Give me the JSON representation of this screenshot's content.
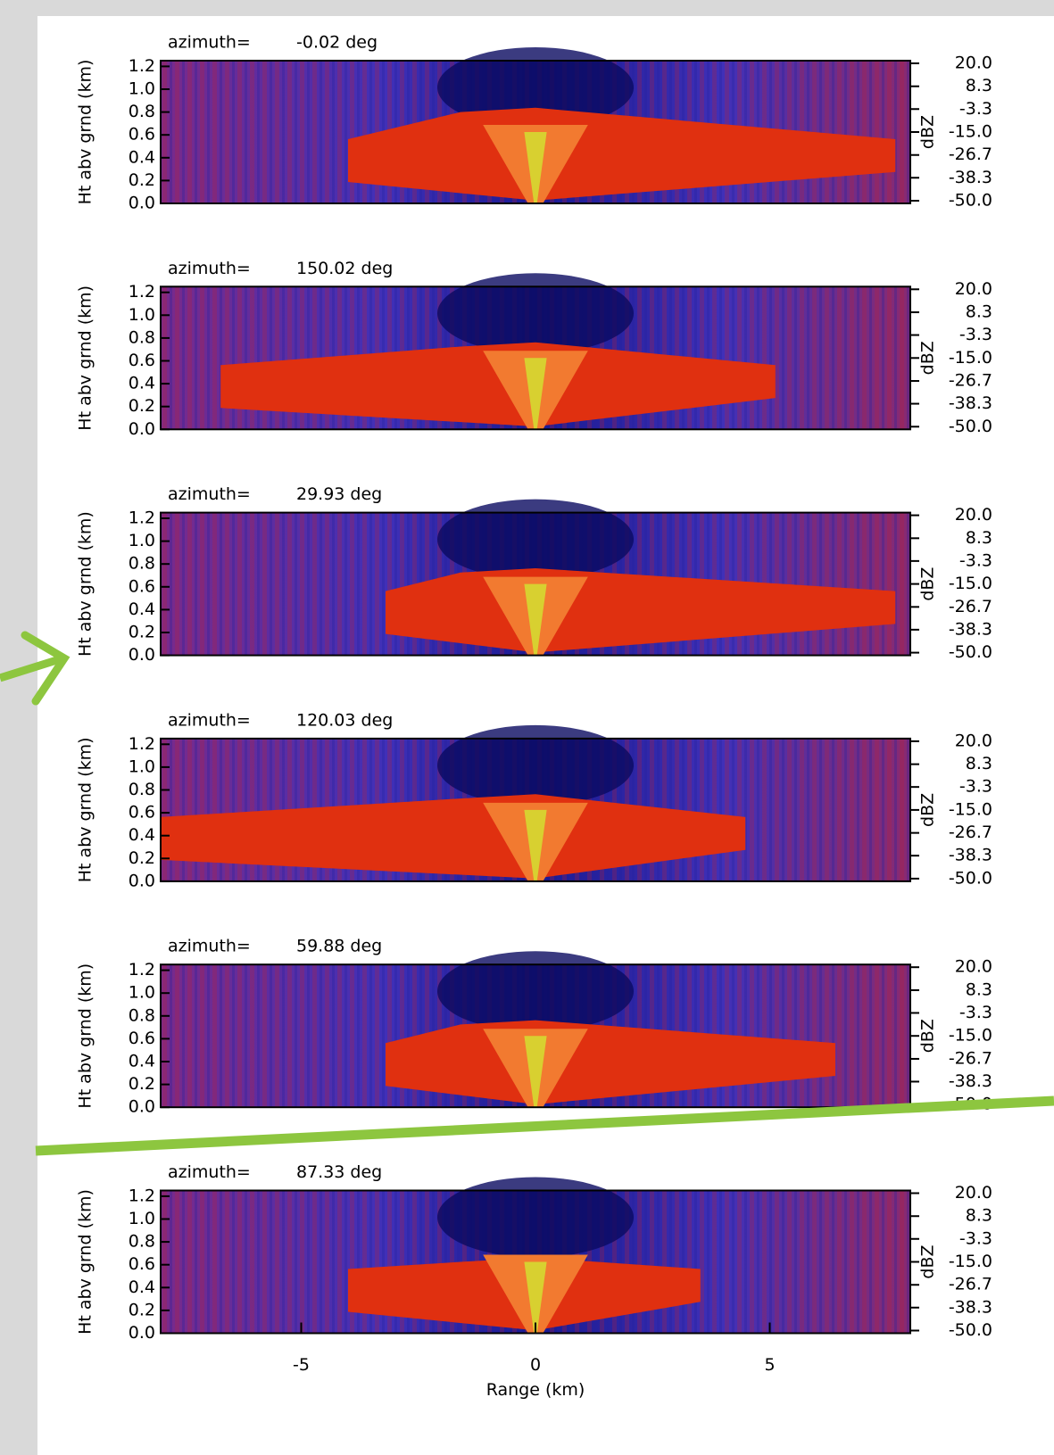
{
  "chart_data": [
    {
      "type": "rhi",
      "title": "azimuth=",
      "azimuth": "-0.02 deg",
      "ylabel": "Ht abv grnd (km)",
      "xlim": [
        -8,
        8
      ],
      "ylim": [
        0,
        1.25
      ],
      "yticks": [
        {
          "value": 0,
          "label": "0.0"
        },
        0.2,
        0.4,
        0.6,
        0.8,
        {
          "value": 1,
          "label": "1.0"
        },
        1.2
      ],
      "clim": [
        -50,
        20
      ],
      "cticks": [
        {
          "value": 20,
          "label": "20.0"
        },
        8.3,
        -3.3,
        {
          "value": -15,
          "label": "-15.0"
        },
        -26.7,
        -38.3,
        {
          "value": -50,
          "label": "-50.0"
        }
      ],
      "clabel": "dBZ"
    },
    {
      "type": "rhi",
      "title": "azimuth=",
      "azimuth": "150.02 deg",
      "ylabel": "Ht abv grnd (km)",
      "xlim": [
        -8,
        8
      ],
      "ylim": [
        0,
        1.25
      ],
      "yticks": [
        {
          "value": 0,
          "label": "0.0"
        },
        0.2,
        0.4,
        0.6,
        0.8,
        {
          "value": 1,
          "label": "1.0"
        },
        1.2
      ],
      "clim": [
        -50,
        20
      ],
      "cticks": [
        {
          "value": 20,
          "label": "20.0"
        },
        8.3,
        -3.3,
        {
          "value": -15,
          "label": "-15.0"
        },
        -26.7,
        -38.3,
        {
          "value": -50,
          "label": "-50.0"
        }
      ],
      "clabel": "dBZ"
    },
    {
      "type": "rhi",
      "title": "azimuth=",
      "azimuth": "29.93 deg",
      "ylabel": "Ht abv grnd (km)",
      "xlim": [
        -8,
        8
      ],
      "ylim": [
        0,
        1.25
      ],
      "yticks": [
        {
          "value": 0,
          "label": "0.0"
        },
        0.2,
        0.4,
        0.6,
        0.8,
        {
          "value": 1,
          "label": "1.0"
        },
        1.2
      ],
      "clim": [
        -50,
        20
      ],
      "cticks": [
        {
          "value": 20,
          "label": "20.0"
        },
        8.3,
        -3.3,
        {
          "value": -15,
          "label": "-15.0"
        },
        -26.7,
        -38.3,
        {
          "value": -50,
          "label": "-50.0"
        }
      ],
      "clabel": "dBZ"
    },
    {
      "type": "rhi",
      "title": "azimuth=",
      "azimuth": "120.03 deg",
      "ylabel": "Ht abv grnd (km)",
      "xlim": [
        -8,
        8
      ],
      "ylim": [
        0,
        1.25
      ],
      "yticks": [
        {
          "value": 0,
          "label": "0.0"
        },
        0.2,
        0.4,
        0.6,
        0.8,
        {
          "value": 1,
          "label": "1.0"
        },
        1.2
      ],
      "clim": [
        -50,
        20
      ],
      "cticks": [
        {
          "value": 20,
          "label": "20.0"
        },
        8.3,
        -3.3,
        {
          "value": -15,
          "label": "-15.0"
        },
        -26.7,
        -38.3,
        {
          "value": -50,
          "label": "-50.0"
        }
      ],
      "clabel": "dBZ"
    },
    {
      "type": "rhi",
      "title": "azimuth=",
      "azimuth": "59.88 deg",
      "ylabel": "Ht abv grnd (km)",
      "xlim": [
        -8,
        8
      ],
      "ylim": [
        0,
        1.25
      ],
      "yticks": [
        {
          "value": 0,
          "label": "0.0"
        },
        0.2,
        0.4,
        0.6,
        0.8,
        {
          "value": 1,
          "label": "1.0"
        },
        1.2
      ],
      "clim": [
        -50,
        20
      ],
      "cticks": [
        {
          "value": 20,
          "label": "20.0"
        },
        8.3,
        -3.3,
        {
          "value": -15,
          "label": "-15.0"
        },
        -26.7,
        -38.3,
        {
          "value": -50,
          "label": "-50.0"
        }
      ],
      "clabel": "dBZ"
    },
    {
      "type": "rhi",
      "title": "azimuth=",
      "azimuth": "87.33 deg",
      "ylabel": "Ht abv grnd (km)",
      "xlim": [
        -8,
        8
      ],
      "ylim": [
        0,
        1.25
      ],
      "yticks": [
        {
          "value": 0,
          "label": "0.0"
        },
        0.2,
        0.4,
        0.6,
        0.8,
        {
          "value": 1,
          "label": "1.0"
        },
        1.2
      ],
      "clim": [
        -50,
        20
      ],
      "cticks": [
        {
          "value": 20,
          "label": "20.0"
        },
        8.3,
        -3.3,
        {
          "value": -15,
          "label": "-15.0"
        },
        -26.7,
        -38.3,
        {
          "value": -50,
          "label": "-50.0"
        }
      ],
      "clabel": "dBZ",
      "xticks": [
        -5,
        0,
        5
      ],
      "xlabel": "Range (km)"
    }
  ]
}
